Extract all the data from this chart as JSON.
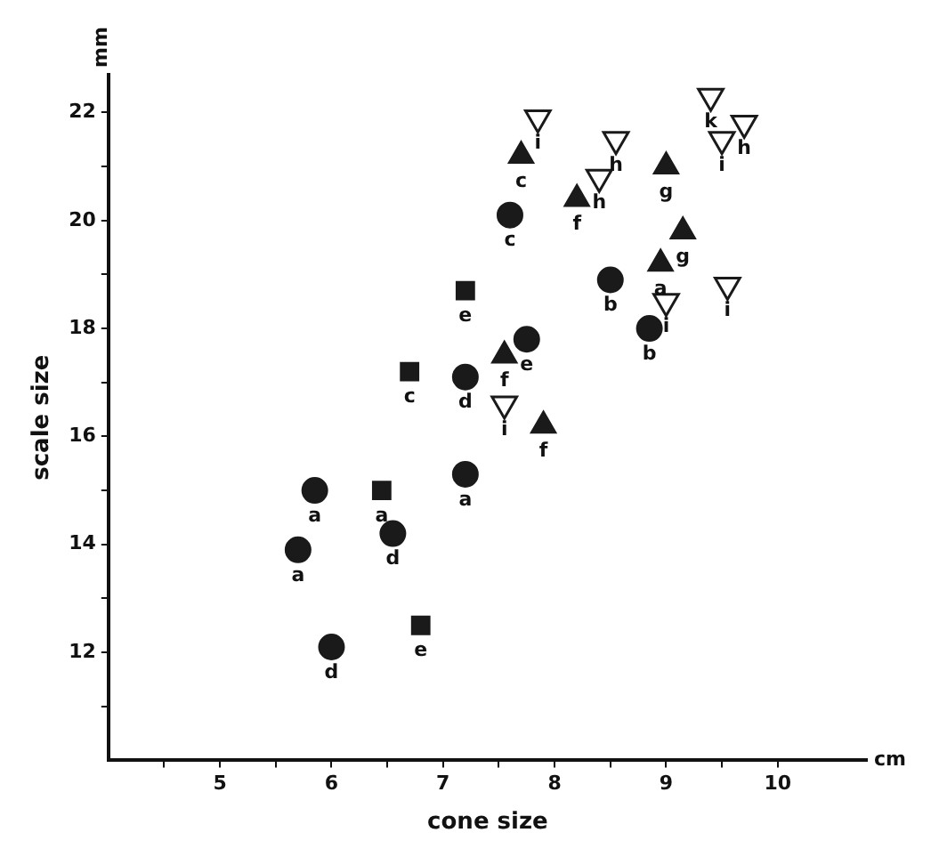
{
  "chart_data": {
    "type": "scatter",
    "xlabel": "cone size",
    "ylabel": "scale size",
    "xlim": [
      4,
      10.8
    ],
    "ylim": [
      10,
      22.7
    ],
    "xticks": [
      {
        "value": 4.5,
        "label": null
      },
      5,
      {
        "value": 5.5,
        "label": null
      },
      6,
      {
        "value": 6.5,
        "label": null
      },
      7,
      {
        "value": 7.5,
        "label": null
      },
      8,
      {
        "value": 8.5,
        "label": null
      },
      9,
      {
        "value": 9.5,
        "label": null
      },
      10
    ],
    "yticks": [
      {
        "value": 11,
        "label": null
      },
      12,
      {
        "value": 13,
        "label": null
      },
      14,
      {
        "value": 15,
        "label": null
      },
      16,
      {
        "value": 17,
        "label": null
      },
      18,
      {
        "value": 19,
        "label": null
      },
      20,
      {
        "value": 21,
        "label": null
      },
      22
    ],
    "grid": false,
    "legend": false,
    "series": [
      {
        "marker": "circle",
        "color": "#1a1a1a",
        "x": [
          5.7,
          5.85,
          7.2,
          7.6,
          7.75,
          8.5,
          8.85
        ],
        "values": [
          13.9,
          15.0,
          15.3,
          20.1,
          17.8,
          18.9,
          18.0
        ]
      },
      {
        "marker": "circle",
        "color": "#1a1a1a",
        "x": [
          6.0,
          6.55,
          7.2
        ],
        "values": [
          12.1,
          14.2,
          17.1
        ]
      },
      {
        "marker": "square",
        "color": "#1a1a1a",
        "x": [
          6.45,
          6.8,
          6.7,
          7.2
        ],
        "values": [
          15.0,
          12.5,
          17.2,
          18.7
        ]
      },
      {
        "marker": "triangle",
        "color": "#1a1a1a",
        "x": [
          7.7,
          8.2,
          9.0,
          9.15,
          8.95,
          7.55,
          7.9
        ],
        "values": [
          21.2,
          20.4,
          21.0,
          19.8,
          19.2,
          17.5,
          16.2
        ]
      },
      {
        "marker": "triangle-down",
        "color": "#1a1a1a",
        "x": [
          7.85,
          7.55,
          8.55,
          8.4,
          9.0,
          9.4,
          9.5,
          9.7,
          9.55
        ],
        "values": [
          21.9,
          16.6,
          21.5,
          20.8,
          18.5,
          22.3,
          21.5,
          21.8,
          18.8
        ]
      }
    ],
    "annotations": [
      "mm",
      "cm",
      {
        "text": "a",
        "x": 5.7,
        "y": 13.9
      },
      {
        "text": "a",
        "x": 5.85,
        "y": 15.0
      },
      {
        "text": "a",
        "x": 7.2,
        "y": 15.3
      },
      {
        "text": "c",
        "x": 7.6,
        "y": 20.1
      },
      {
        "text": "e",
        "x": 7.75,
        "y": 17.8
      },
      {
        "text": "b",
        "x": 8.5,
        "y": 18.9
      },
      {
        "text": "b",
        "x": 8.85,
        "y": 18.0
      },
      {
        "text": "d",
        "x": 6.0,
        "y": 12.1
      },
      {
        "text": "d",
        "x": 6.55,
        "y": 14.2
      },
      {
        "text": "d",
        "x": 7.2,
        "y": 17.1
      },
      {
        "text": "a",
        "x": 6.45,
        "y": 15.0
      },
      {
        "text": "e",
        "x": 6.8,
        "y": 12.5
      },
      {
        "text": "c",
        "x": 6.7,
        "y": 17.2
      },
      {
        "text": "e",
        "x": 7.2,
        "y": 18.7
      },
      {
        "text": "c",
        "x": 7.7,
        "y": 21.2
      },
      {
        "text": "f",
        "x": 8.2,
        "y": 20.4
      },
      {
        "text": "g",
        "x": 9.0,
        "y": 21.0
      },
      {
        "text": "g",
        "x": 9.15,
        "y": 19.8
      },
      {
        "text": "a",
        "x": 8.95,
        "y": 19.2
      },
      {
        "text": "f",
        "x": 7.55,
        "y": 17.5
      },
      {
        "text": "f",
        "x": 7.9,
        "y": 16.2
      },
      {
        "text": "i",
        "x": 7.85,
        "y": 21.9
      },
      {
        "text": "i",
        "x": 7.55,
        "y": 16.6
      },
      {
        "text": "h",
        "x": 8.55,
        "y": 21.5
      },
      {
        "text": "h",
        "x": 8.4,
        "y": 20.8
      },
      {
        "text": "i",
        "x": 9.0,
        "y": 18.5
      },
      {
        "text": "k",
        "x": 9.4,
        "y": 22.3
      },
      {
        "text": "i",
        "x": 9.5,
        "y": 21.5
      },
      {
        "text": "h",
        "x": 9.7,
        "y": 21.8
      },
      {
        "text": "i",
        "x": 9.55,
        "y": 18.8
      }
    ]
  }
}
